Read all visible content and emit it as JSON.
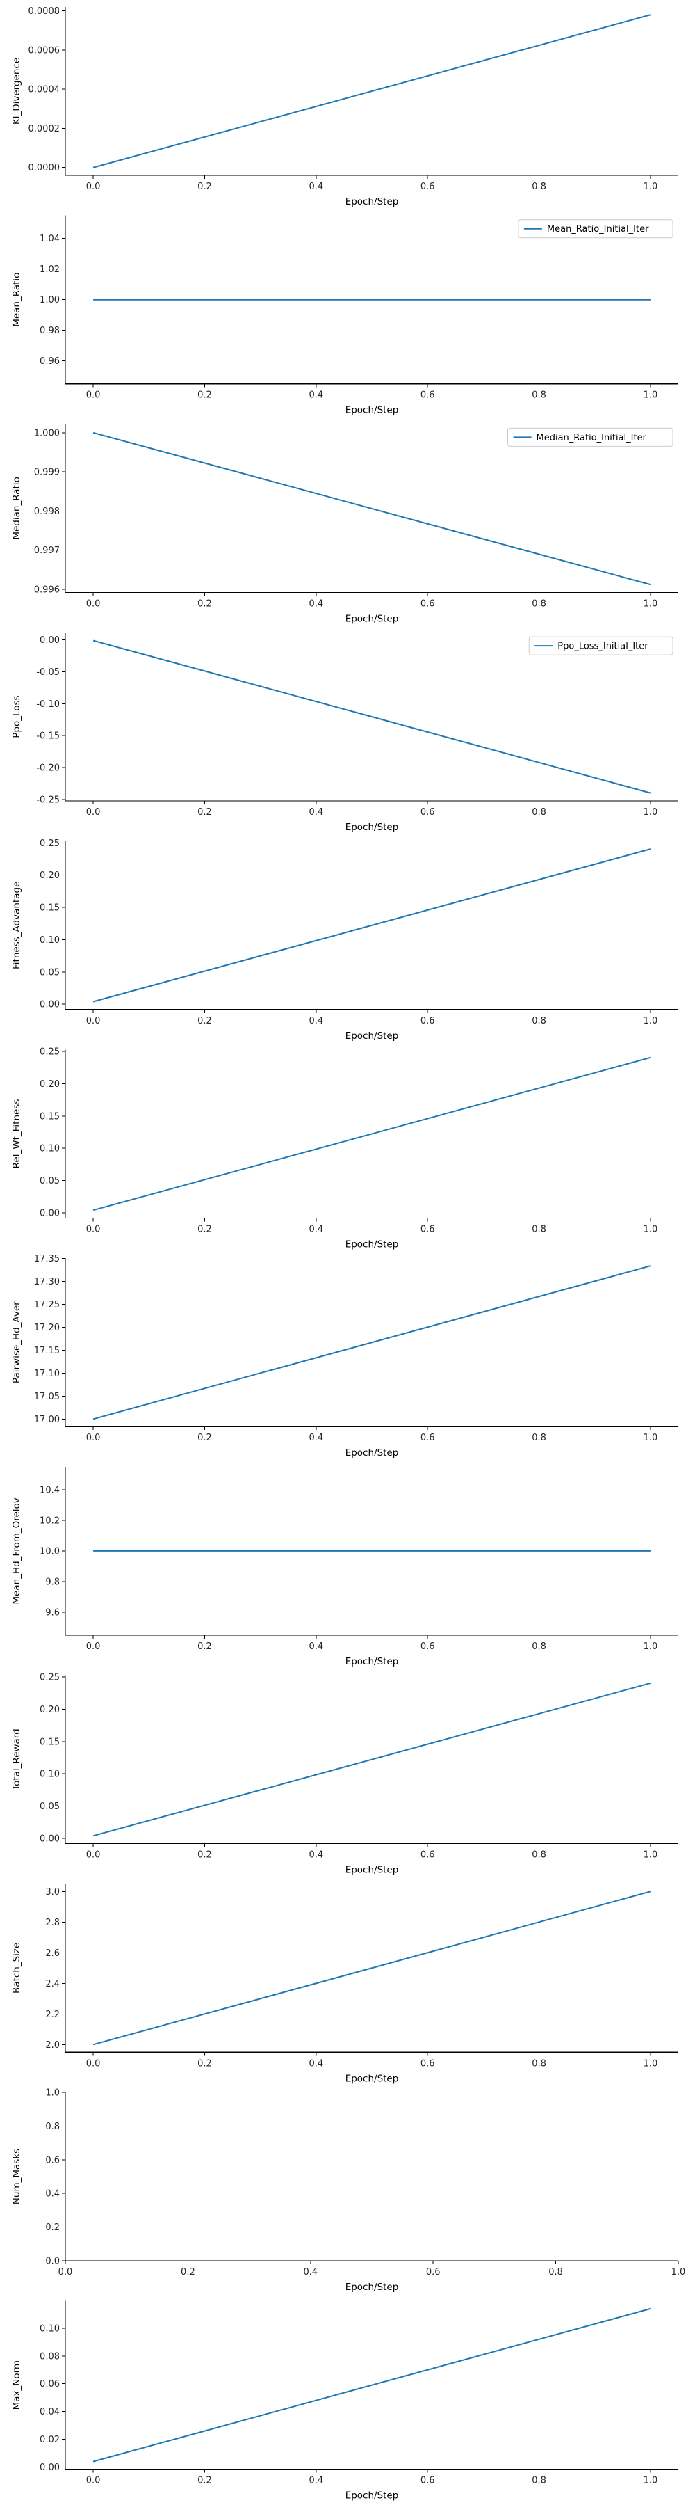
{
  "chart_data": [
    {
      "type": "line",
      "xlabel": "Epoch/Step",
      "ylabel": "Kl_Divergence",
      "xlim": [
        -0.05,
        1.05
      ],
      "ylim": [
        -4e-05,
        0.00082
      ],
      "xticks": [
        "0.0",
        "0.2",
        "0.4",
        "0.6",
        "0.8",
        "1.0"
      ],
      "yticks": [
        "0.0000",
        "0.0002",
        "0.0004",
        "0.0006",
        "0.0008"
      ],
      "legend": "none",
      "series": [
        {
          "x": [
            0.0,
            1.0
          ],
          "y": [
            0.0,
            0.00078
          ],
          "color": "#1f77b4"
        }
      ]
    },
    {
      "type": "line",
      "xlabel": "Epoch/Step",
      "ylabel": "Mean_Ratio",
      "xlim": [
        -0.05,
        1.05
      ],
      "ylim": [
        0.945,
        1.055
      ],
      "xticks": [
        "0.0",
        "0.2",
        "0.4",
        "0.6",
        "0.8",
        "1.0"
      ],
      "yticks": [
        "0.96",
        "0.98",
        "1.00",
        "1.02",
        "1.04"
      ],
      "legend": "top-right",
      "series": [
        {
          "name": "Mean_Ratio_Initial_Iter",
          "x": [
            0.0,
            1.0
          ],
          "y": [
            1.0,
            1.0
          ],
          "color": "#1f77b4"
        }
      ]
    },
    {
      "type": "line",
      "xlabel": "Epoch/Step",
      "ylabel": "Median_Ratio",
      "xlim": [
        -0.05,
        1.05
      ],
      "ylim": [
        0.99592,
        1.00022
      ],
      "xticks": [
        "0.0",
        "0.2",
        "0.4",
        "0.6",
        "0.8",
        "1.0"
      ],
      "yticks": [
        "0.996",
        "0.997",
        "0.998",
        "0.999",
        "1.000"
      ],
      "legend": "top-right",
      "series": [
        {
          "name": "Median_Ratio_Initial_Iter",
          "x": [
            0.0,
            1.0
          ],
          "y": [
            1.0,
            0.99612
          ],
          "color": "#1f77b4"
        }
      ]
    },
    {
      "type": "line",
      "xlabel": "Epoch/Step",
      "ylabel": "Ppo_Loss",
      "xlim": [
        -0.05,
        1.05
      ],
      "ylim": [
        -0.2525,
        0.0115
      ],
      "xticks": [
        "0.0",
        "0.2",
        "0.4",
        "0.6",
        "0.8",
        "1.0"
      ],
      "yticks": [
        "0.00",
        "-0.05",
        "-0.10",
        "-0.15",
        "-0.20",
        "-0.25"
      ],
      "legend": "top-right",
      "series": [
        {
          "name": "Ppo_Loss_Initial_Iter",
          "x": [
            0.0,
            1.0
          ],
          "y": [
            -0.001,
            -0.24
          ],
          "color": "#1f77b4"
        }
      ]
    },
    {
      "type": "line",
      "xlabel": "Epoch/Step",
      "ylabel": "Fitness_Advantage",
      "xlim": [
        -0.05,
        1.05
      ],
      "ylim": [
        -0.0082,
        0.2527
      ],
      "xticks": [
        "0.0",
        "0.2",
        "0.4",
        "0.6",
        "0.8",
        "1.0"
      ],
      "yticks": [
        "0.00",
        "0.05",
        "0.10",
        "0.15",
        "0.20",
        "0.25"
      ],
      "legend": "none",
      "series": [
        {
          "x": [
            0.0,
            1.0
          ],
          "y": [
            0.004,
            0.2405
          ],
          "color": "#1f77b4"
        }
      ]
    },
    {
      "type": "line",
      "xlabel": "Epoch/Step",
      "ylabel": "Rel_Wt_Fitness",
      "xlim": [
        -0.05,
        1.05
      ],
      "ylim": [
        -0.0082,
        0.2527
      ],
      "xticks": [
        "0.0",
        "0.2",
        "0.4",
        "0.6",
        "0.8",
        "1.0"
      ],
      "yticks": [
        "0.00",
        "0.05",
        "0.10",
        "0.15",
        "0.20",
        "0.25"
      ],
      "legend": "none",
      "series": [
        {
          "x": [
            0.0,
            1.0
          ],
          "y": [
            0.004,
            0.2405
          ],
          "color": "#1f77b4"
        }
      ]
    },
    {
      "type": "line",
      "xlabel": "Epoch/Step",
      "ylabel": "Pairwise_Hd_Aver",
      "xlim": [
        -0.05,
        1.05
      ],
      "ylim": [
        16.9835,
        17.3502
      ],
      "xticks": [
        "0.0",
        "0.2",
        "0.4",
        "0.6",
        "0.8",
        "1.0"
      ],
      "yticks": [
        "17.00",
        "17.05",
        "17.10",
        "17.15",
        "17.20",
        "17.25",
        "17.30",
        "17.35"
      ],
      "legend": "none",
      "series": [
        {
          "x": [
            0.0,
            1.0
          ],
          "y": [
            17.0,
            17.3335
          ],
          "color": "#1f77b4"
        }
      ]
    },
    {
      "type": "line",
      "xlabel": "Epoch/Step",
      "ylabel": "Mean_Hd_From_Orelov",
      "xlim": [
        -0.05,
        1.05
      ],
      "ylim": [
        9.45,
        10.55
      ],
      "xticks": [
        "0.0",
        "0.2",
        "0.4",
        "0.6",
        "0.8",
        "1.0"
      ],
      "yticks": [
        "9.6",
        "9.8",
        "10.0",
        "10.2",
        "10.4"
      ],
      "legend": "none",
      "series": [
        {
          "x": [
            0.0,
            1.0
          ],
          "y": [
            10.0,
            10.0
          ],
          "color": "#1f77b4"
        }
      ]
    },
    {
      "type": "line",
      "xlabel": "Epoch/Step",
      "ylabel": "Total_Reward",
      "xlim": [
        -0.05,
        1.05
      ],
      "ylim": [
        -0.0082,
        0.2527
      ],
      "xticks": [
        "0.0",
        "0.2",
        "0.4",
        "0.6",
        "0.8",
        "1.0"
      ],
      "yticks": [
        "0.00",
        "0.05",
        "0.10",
        "0.15",
        "0.20",
        "0.25"
      ],
      "legend": "none",
      "series": [
        {
          "x": [
            0.0,
            1.0
          ],
          "y": [
            0.004,
            0.2405
          ],
          "color": "#1f77b4"
        }
      ]
    },
    {
      "type": "line",
      "xlabel": "Epoch/Step",
      "ylabel": "Batch_Size",
      "xlim": [
        -0.05,
        1.05
      ],
      "ylim": [
        1.95,
        3.05
      ],
      "xticks": [
        "0.0",
        "0.2",
        "0.4",
        "0.6",
        "0.8",
        "1.0"
      ],
      "yticks": [
        "2.0",
        "2.2",
        "2.4",
        "2.6",
        "2.8",
        "3.0"
      ],
      "legend": "none",
      "series": [
        {
          "x": [
            0.0,
            1.0
          ],
          "y": [
            2.0,
            3.0
          ],
          "color": "#1f77b4"
        }
      ]
    },
    {
      "type": "line",
      "xlabel": "Epoch/Step",
      "ylabel": "Num_Masks",
      "xlim": [
        0.0,
        1.0
      ],
      "ylim": [
        0.0,
        1.0
      ],
      "xticks": [
        "0.0",
        "0.2",
        "0.4",
        "0.6",
        "0.8",
        "1.0"
      ],
      "yticks": [
        "0.0",
        "0.2",
        "0.4",
        "0.6",
        "0.8",
        "1.0"
      ],
      "legend": "none",
      "series": []
    },
    {
      "type": "line",
      "xlabel": "Epoch/Step",
      "ylabel": "Max_Norm",
      "xlim": [
        -0.05,
        1.05
      ],
      "ylim": [
        -0.0016,
        0.1196
      ],
      "xticks": [
        "0.0",
        "0.2",
        "0.4",
        "0.6",
        "0.8",
        "1.0"
      ],
      "yticks": [
        "0.00",
        "0.02",
        "0.04",
        "0.06",
        "0.08",
        "0.10"
      ],
      "legend": "none",
      "series": [
        {
          "x": [
            0.0,
            1.0
          ],
          "y": [
            0.004,
            0.114
          ],
          "color": "#1f77b4"
        }
      ]
    }
  ]
}
